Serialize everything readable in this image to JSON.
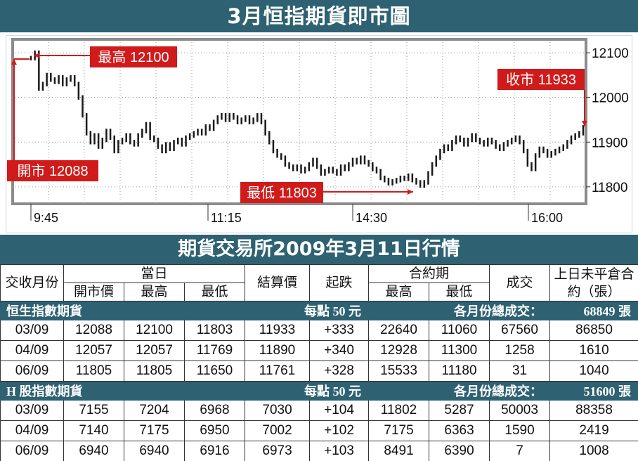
{
  "title": "3月恒指期貨即市圖",
  "section_title": "期貨交易所2009年3月11日行情",
  "colors": {
    "band": "#2e6171",
    "callout": "#d11a1a",
    "bars": "#1a1a1a",
    "grid": "#9a9a9a"
  },
  "chart_data": {
    "type": "line",
    "title": "3月恒指期貨即市圖",
    "x_ticks": [
      "9:45",
      "11:15",
      "14:30",
      "16:00"
    ],
    "y_ticks": [
      11800,
      11900,
      12000,
      12100
    ],
    "ylim": [
      11762,
      12130
    ],
    "grid": true,
    "series": [
      {
        "values": [
          12088,
          12100,
          12020,
          12030,
          12050,
          12040,
          12035,
          12045,
          12030,
          12040,
          12045,
          12030,
          12000,
          11960,
          11920,
          11900,
          11915,
          11890,
          11905,
          11925,
          11910,
          11880,
          11900,
          11905,
          11915,
          11900,
          11895,
          11915,
          11925,
          11940,
          11910,
          11905,
          11890,
          11880,
          11895,
          11885,
          11900,
          11905,
          11895,
          11910,
          11915,
          11920,
          11925,
          11920,
          11935,
          11930,
          11945,
          11955,
          11960,
          11950,
          11960,
          11955,
          11945,
          11950,
          11955,
          11945,
          11950,
          11960,
          11945,
          11920,
          11900,
          11880,
          11870,
          11865,
          11850,
          11845,
          11840,
          11845,
          11835,
          11840,
          11850,
          11860,
          11845,
          11830,
          11835,
          11840,
          11835,
          11830,
          11845,
          11840,
          11850,
          11860,
          11855,
          11865,
          11855,
          11850,
          11840,
          11835,
          11820,
          11815,
          11808,
          11812,
          11815,
          11820,
          11818,
          11825,
          11815,
          11810,
          11803,
          11810,
          11830,
          11850,
          11865,
          11880,
          11890,
          11885,
          11900,
          11910,
          11905,
          11895,
          11905,
          11915,
          11905,
          11900,
          11895,
          11905,
          11900,
          11890,
          11885,
          11895,
          11900,
          11905,
          11910,
          11900,
          11880,
          11850,
          11840,
          11870,
          11885,
          11880,
          11870,
          11875,
          11880,
          11885,
          11890,
          11900,
          11910,
          11915,
          11920,
          11933
        ]
      }
    ],
    "annotations": [
      {
        "label": "最高 12100",
        "value": 12100
      },
      {
        "label": "開市 12088",
        "value": 12088
      },
      {
        "label": "最低 11803",
        "value": 11803
      },
      {
        "label": "收市 11933",
        "value": 11933
      }
    ]
  },
  "table": {
    "headers": {
      "month": "交收月份",
      "day": "當日",
      "open": "開市價",
      "high": "最高",
      "low": "最低",
      "settle": "結算價",
      "change": "起跌",
      "contract": "合約期",
      "c_high": "最高",
      "c_low": "最低",
      "volume": "成交",
      "oi": "上日未平倉合約（張）"
    },
    "groups": [
      {
        "name": "恒生指數期貨",
        "unit": "每點 50 元",
        "total_label": "各月份總成交：",
        "total": "68849 張",
        "rows": [
          [
            "03/09",
            "12088",
            "12100",
            "11803",
            "11933",
            "+333",
            "22640",
            "11060",
            "67560",
            "86850"
          ],
          [
            "04/09",
            "12057",
            "12057",
            "11769",
            "11890",
            "+340",
            "12928",
            "11300",
            "1258",
            "1610"
          ],
          [
            "06/09",
            "11805",
            "11805",
            "11650",
            "11761",
            "+328",
            "15533",
            "11180",
            "31",
            "1040"
          ]
        ]
      },
      {
        "name": "H 股指數期貨",
        "unit": "每點 50 元",
        "total_label": "各月份總成交：",
        "total": "51600 張",
        "rows": [
          [
            "03/09",
            "7155",
            "7204",
            "6968",
            "7030",
            "+104",
            "11802",
            "5287",
            "50003",
            "88358"
          ],
          [
            "04/09",
            "7140",
            "7175",
            "6950",
            "7002",
            "+102",
            "7175",
            "6363",
            "1590",
            "2419"
          ],
          [
            "06/09",
            "6940",
            "6940",
            "6916",
            "6973",
            "+103",
            "8491",
            "6390",
            "7",
            "1008"
          ]
        ]
      }
    ]
  }
}
